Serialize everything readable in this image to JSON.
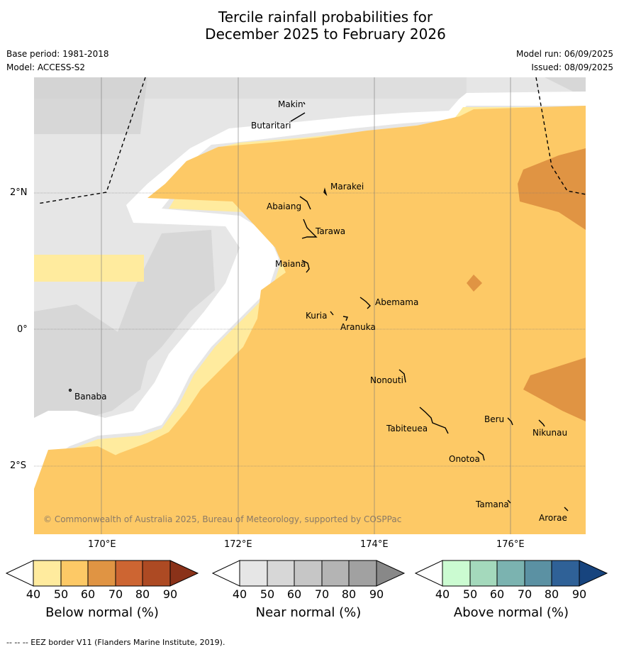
{
  "title_line1": "Tercile rainfall probabilities for",
  "title_line2": "December 2025 to February 2026",
  "base_period": "Base period: 1981-2018",
  "model": "Model: ACCESS-S2",
  "model_run": "Model run: 06/09/2025",
  "issued": "Issued: 08/09/2025",
  "lat_ticks": [
    "2°N",
    "0°",
    "2°S"
  ],
  "lon_ticks": [
    "170°E",
    "172°E",
    "174°E",
    "176°E"
  ],
  "places": {
    "makin": "Makin",
    "butaritari": "Butaritari",
    "marakei": "Marakei",
    "abaiang": "Abaiang",
    "tarawa": "Tarawa",
    "maiana": "Maiana",
    "abemama": "Abemama",
    "kuria": "Kuria",
    "aranuka": "Aranuka",
    "banaba": "Banaba",
    "nonouti": "Nonouti",
    "tabiteuea": "Tabiteuea",
    "beru": "Beru",
    "nikunau": "Nikunau",
    "onotoa": "Onotoa",
    "tamana": "Tamana",
    "arorae": "Arorae"
  },
  "copyright": "© Commonwealth of Australia 2025, Bureau of Meteorology, supported by COSPPac",
  "colorbars": [
    {
      "label": "Below normal (%)",
      "ticks": [
        "40",
        "50",
        "60",
        "70",
        "80",
        "90"
      ],
      "colors": [
        "#ffffff",
        "#ffeb9e",
        "#fdc966",
        "#e09443",
        "#cd6532",
        "#ad4a23",
        "#8a3219"
      ]
    },
    {
      "label": "Near normal (%)",
      "ticks": [
        "40",
        "50",
        "60",
        "70",
        "80",
        "90"
      ],
      "colors": [
        "#ffffff",
        "#e6e6e6",
        "#d7d7d7",
        "#c6c6c6",
        "#b4b4b4",
        "#a1a1a1",
        "#888888"
      ]
    },
    {
      "label": "Above normal (%)",
      "ticks": [
        "40",
        "50",
        "60",
        "70",
        "80",
        "90"
      ],
      "colors": [
        "#ffffff",
        "#cbfbd1",
        "#a4d9bc",
        "#7bb3b0",
        "#5b91a3",
        "#2f6197",
        "#17447e"
      ]
    }
  ],
  "footer": "--  --  -- EEZ border V11 (Flanders Marine Institute, 2019)."
}
